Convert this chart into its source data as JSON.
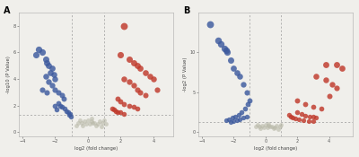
{
  "panel_A": {
    "blue_points": [
      [
        -3.2,
        5.8
      ],
      [
        -3.0,
        6.2
      ],
      [
        -2.8,
        6.0
      ],
      [
        -2.6,
        5.5
      ],
      [
        -2.5,
        5.2
      ],
      [
        -2.4,
        5.0
      ],
      [
        -2.2,
        4.8
      ],
      [
        -2.3,
        4.5
      ],
      [
        -2.1,
        4.3
      ],
      [
        -2.0,
        4.0
      ],
      [
        -2.6,
        4.2
      ],
      [
        -2.4,
        3.8
      ],
      [
        -2.2,
        3.5
      ],
      [
        -2.0,
        3.2
      ],
      [
        -1.8,
        3.0
      ],
      [
        -1.6,
        2.8
      ],
      [
        -1.5,
        2.5
      ],
      [
        -1.8,
        2.2
      ],
      [
        -2.0,
        2.0
      ],
      [
        -1.6,
        1.9
      ],
      [
        -1.4,
        1.8
      ],
      [
        -1.3,
        1.6
      ],
      [
        -1.2,
        1.5
      ],
      [
        -1.1,
        1.4
      ],
      [
        -1.15,
        1.3
      ],
      [
        -1.05,
        1.2
      ],
      [
        -2.8,
        3.2
      ],
      [
        -2.5,
        3.0
      ],
      [
        -1.9,
        1.7
      ],
      [
        -1.7,
        2.0
      ]
    ],
    "red_points": [
      [
        2.2,
        8.0
      ],
      [
        2.0,
        5.8
      ],
      [
        2.5,
        5.5
      ],
      [
        2.8,
        5.2
      ],
      [
        3.0,
        5.0
      ],
      [
        3.2,
        4.8
      ],
      [
        3.5,
        4.5
      ],
      [
        3.8,
        4.2
      ],
      [
        2.2,
        4.0
      ],
      [
        2.5,
        3.8
      ],
      [
        2.8,
        3.5
      ],
      [
        3.0,
        3.2
      ],
      [
        3.2,
        3.0
      ],
      [
        3.5,
        2.8
      ],
      [
        1.8,
        2.5
      ],
      [
        2.0,
        2.3
      ],
      [
        2.2,
        2.1
      ],
      [
        2.5,
        2.0
      ],
      [
        2.8,
        1.9
      ],
      [
        3.0,
        1.8
      ],
      [
        1.5,
        1.8
      ],
      [
        1.6,
        1.7
      ],
      [
        1.7,
        1.6
      ],
      [
        1.8,
        1.5
      ],
      [
        2.0,
        1.5
      ],
      [
        2.2,
        1.4
      ],
      [
        4.0,
        4.0
      ],
      [
        4.2,
        3.2
      ]
    ],
    "gray_points": [
      [
        0.0,
        0.9
      ],
      [
        0.2,
        0.8
      ],
      [
        0.4,
        0.7
      ],
      [
        -0.2,
        0.8
      ],
      [
        0.1,
        0.6
      ],
      [
        0.3,
        0.7
      ],
      [
        -0.1,
        0.6
      ],
      [
        0.5,
        0.5
      ],
      [
        0.6,
        0.6
      ],
      [
        -0.3,
        0.5
      ],
      [
        0.8,
        0.4
      ],
      [
        -0.4,
        0.7
      ],
      [
        0.2,
        1.0
      ],
      [
        1.0,
        0.9
      ],
      [
        -0.5,
        0.9
      ],
      [
        0.7,
        0.8
      ],
      [
        -0.6,
        0.7
      ],
      [
        0.9,
        0.7
      ],
      [
        -0.7,
        0.5
      ],
      [
        1.1,
        0.6
      ]
    ],
    "vline1": -1.0,
    "vline2": 1.0,
    "hline": 1.3,
    "xlim": [
      -4.2,
      5.2
    ],
    "ylim": [
      -0.3,
      9.0
    ],
    "xticks": [
      -4.0,
      -2.0,
      0.0,
      2.0,
      4.0
    ],
    "yticks": [
      0,
      2,
      4,
      6,
      8
    ],
    "xlabel": "log2 (fold change)",
    "ylabel": "-log10 (P Value)",
    "label": "A"
  },
  "panel_B": {
    "blue_points": [
      [
        -3.5,
        13.5
      ],
      [
        -3.0,
        11.5
      ],
      [
        -2.8,
        11.0
      ],
      [
        -2.6,
        10.5
      ],
      [
        -2.5,
        10.2
      ],
      [
        -2.4,
        10.0
      ],
      [
        -2.2,
        9.0
      ],
      [
        -2.0,
        8.0
      ],
      [
        -1.8,
        7.5
      ],
      [
        -1.6,
        7.0
      ],
      [
        -1.4,
        6.0
      ],
      [
        -1.2,
        5.0
      ],
      [
        -1.0,
        4.0
      ],
      [
        -1.1,
        3.5
      ],
      [
        -1.3,
        3.0
      ],
      [
        -1.5,
        2.5
      ],
      [
        -1.7,
        2.2
      ],
      [
        -1.9,
        2.0
      ],
      [
        -2.1,
        1.8
      ],
      [
        -2.3,
        1.6
      ],
      [
        -2.5,
        1.5
      ],
      [
        -1.2,
        2.0
      ],
      [
        -1.4,
        1.8
      ],
      [
        -1.6,
        1.6
      ],
      [
        -1.8,
        1.5
      ],
      [
        -2.0,
        1.4
      ],
      [
        -2.2,
        1.3
      ]
    ],
    "red_points": [
      [
        3.8,
        8.5
      ],
      [
        4.5,
        8.5
      ],
      [
        3.2,
        7.0
      ],
      [
        3.8,
        6.5
      ],
      [
        4.2,
        6.0
      ],
      [
        4.5,
        5.5
      ],
      [
        2.0,
        4.0
      ],
      [
        2.5,
        3.5
      ],
      [
        3.0,
        3.2
      ],
      [
        3.5,
        3.0
      ],
      [
        2.0,
        2.5
      ],
      [
        2.3,
        2.3
      ],
      [
        2.5,
        2.1
      ],
      [
        2.8,
        2.0
      ],
      [
        3.0,
        1.9
      ],
      [
        3.2,
        1.8
      ],
      [
        1.5,
        2.2
      ],
      [
        1.6,
        2.0
      ],
      [
        1.7,
        1.8
      ],
      [
        1.9,
        1.7
      ],
      [
        2.1,
        1.6
      ],
      [
        2.4,
        1.5
      ],
      [
        2.7,
        1.4
      ],
      [
        3.0,
        1.4
      ],
      [
        4.8,
        8.0
      ],
      [
        4.0,
        4.5
      ]
    ],
    "gray_points": [
      [
        0.0,
        0.9
      ],
      [
        0.2,
        0.8
      ],
      [
        0.4,
        0.7
      ],
      [
        -0.2,
        0.8
      ],
      [
        0.1,
        0.6
      ],
      [
        0.3,
        0.7
      ],
      [
        -0.1,
        0.6
      ],
      [
        0.5,
        0.5
      ],
      [
        0.6,
        0.6
      ],
      [
        -0.3,
        0.5
      ],
      [
        0.8,
        0.4
      ],
      [
        -0.4,
        0.7
      ],
      [
        0.2,
        1.0
      ],
      [
        1.0,
        0.9
      ],
      [
        -0.5,
        0.9
      ],
      [
        0.7,
        0.8
      ],
      [
        -0.6,
        0.7
      ],
      [
        0.9,
        0.7
      ]
    ],
    "vline1": -1.0,
    "vline2": 1.0,
    "hline": 1.3,
    "xlim": [
      -4.2,
      5.5
    ],
    "ylim": [
      -0.5,
      15.0
    ],
    "xticks": [
      -4.0,
      -2.0,
      0.0,
      2.0,
      4.0
    ],
    "yticks": [
      0,
      5,
      10
    ],
    "xlabel": "log2 (fold change)",
    "ylabel": "-log2 (P Value)",
    "label": "B"
  },
  "blue_color": "#3d5a9e",
  "red_color": "#c0392b",
  "gray_color": "#b8b8a8",
  "line_color": "#999999",
  "bg_color": "#f0efeb",
  "dot_size_small": 12,
  "dot_size_large": 22,
  "dot_size_med": 17
}
